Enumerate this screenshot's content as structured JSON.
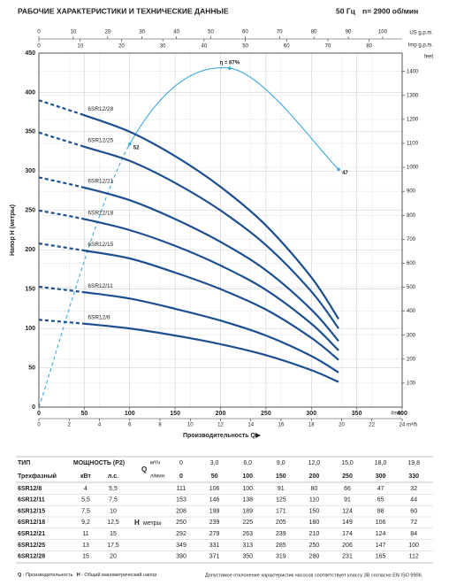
{
  "header": {
    "title": "РАБОЧИЕ ХАРАКТЕРИСТИКИ И ТЕХНИЧЕСКИЕ ДАННЫЕ",
    "freq": "50 Гц",
    "speed": "n= 2900 об/мин"
  },
  "chart_data": {
    "type": "line",
    "x_label": "Производительность Q",
    "y_label": "Напор H (метры)",
    "x_unit": "l/min",
    "x2_unit": "m³/h",
    "x3_unit": "US g.p.m.",
    "x4_unit": "Imp g.p.m.",
    "y2_unit": "feet",
    "x": [
      0,
      50,
      100,
      150,
      200,
      250,
      300,
      330
    ],
    "series": [
      {
        "name": "6SR12/8",
        "color": "#1d4f91",
        "values": [
          111,
          106,
          100,
          91,
          80,
          66,
          47,
          32
        ]
      },
      {
        "name": "6SR12/11",
        "color": "#1d4f91",
        "values": [
          153,
          146,
          138,
          125,
          110,
          91,
          65,
          44
        ]
      },
      {
        "name": "6SR12/15",
        "color": "#1d4f91",
        "values": [
          208,
          199,
          189,
          171,
          150,
          124,
          88,
          60
        ]
      },
      {
        "name": "6SR12/18",
        "color": "#1d4f91",
        "values": [
          250,
          239,
          225,
          205,
          180,
          149,
          106,
          72
        ]
      },
      {
        "name": "6SR12/21",
        "color": "#1d4f91",
        "values": [
          292,
          279,
          263,
          239,
          210,
          174,
          124,
          84
        ]
      },
      {
        "name": "6SR12/25",
        "color": "#1d4f91",
        "values": [
          349,
          331,
          313,
          285,
          250,
          206,
          147,
          100
        ]
      },
      {
        "name": "6SR12/28",
        "color": "#1d4f91",
        "values": [
          390,
          371,
          350,
          319,
          280,
          231,
          165,
          112
        ]
      }
    ],
    "efficiency": {
      "color": "#3fa9e0",
      "x": [
        0,
        100,
        210,
        330
      ],
      "values": [
        0,
        52,
        67,
        47
      ],
      "value_labels": [
        null,
        "52",
        "η = 67%",
        "47"
      ]
    },
    "xlim": [
      0,
      400
    ],
    "xticks": [
      0,
      50,
      100,
      150,
      200,
      250,
      300,
      350,
      400
    ],
    "x2lim": [
      0,
      24
    ],
    "x2ticks": [
      0,
      2,
      4,
      6,
      8,
      10,
      12,
      14,
      16,
      18,
      20,
      22,
      24
    ],
    "x3lim": [
      0,
      105.67
    ],
    "x3ticks": [
      0,
      10,
      20,
      30,
      40,
      50,
      60,
      70,
      80,
      90,
      100
    ],
    "x4lim": [
      0,
      87.99
    ],
    "x4ticks": [
      0,
      10,
      20,
      30,
      40,
      50,
      60,
      70,
      80
    ],
    "ylim": [
      0,
      450
    ],
    "yticks": [
      0,
      50,
      100,
      150,
      200,
      250,
      300,
      350,
      400,
      450
    ],
    "y2lim": [
      0,
      1476.4
    ],
    "y2ticks": [
      100,
      200,
      300,
      400,
      500,
      600,
      700,
      800,
      900,
      1000,
      1100,
      1200,
      1300,
      1400
    ],
    "grid": true
  },
  "table": {
    "type_header": "ТИП",
    "power_header": "МОЩНОСТЬ (P2)",
    "phase": "Трехфазный",
    "kw": "кВт",
    "hp": "л.с.",
    "q": "Q",
    "m3h": "м³/ч",
    "lmin": "л/мин",
    "h": "H",
    "h_unit": "метры",
    "flow_m3h": [
      "0",
      "3,0",
      "6,0",
      "9,0",
      "12,0",
      "15,0",
      "18,0",
      "19,8"
    ],
    "power_kw": [
      "4",
      "5,5",
      "7,5",
      "9,2",
      "11",
      "13",
      "15"
    ],
    "power_hp": [
      "5,5",
      "7,5",
      "10",
      "12,5",
      "15",
      "17,5",
      "20"
    ]
  },
  "footer": {
    "q": "Q",
    "q_text": " - Производительность",
    "h": "H",
    "h_text": " - Общий манометрический напор",
    "note": "Допустимое отклонение характеристик насосов соответствует классу 3В согласно EN ISO 9906."
  }
}
